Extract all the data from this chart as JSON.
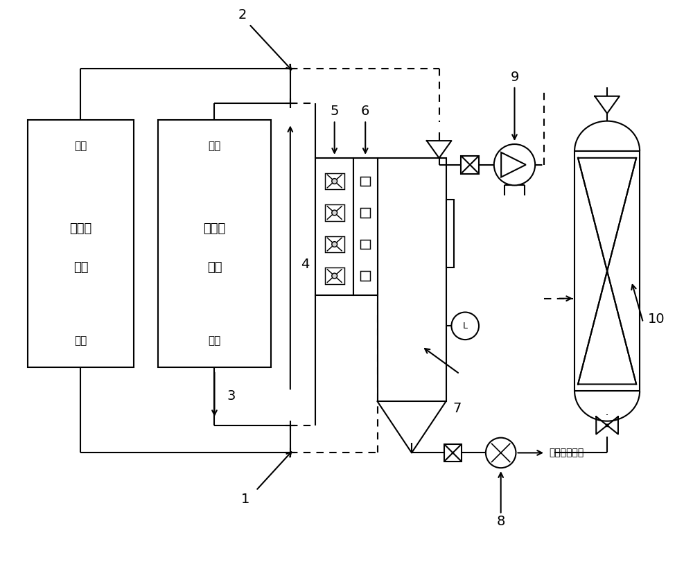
{
  "bg_color": "#ffffff",
  "line_color": "#000000",
  "labels": {
    "num_1": "1",
    "num_2": "2",
    "num_3": "3",
    "num_4": "4",
    "num_5": "5",
    "num_6": "6",
    "num_7": "7",
    "num_8": "8",
    "num_9": "9",
    "num_10": "10",
    "pump_label": "去清洗泵入口"
  },
  "figsize": [
    10.0,
    8.11
  ],
  "dpi": 100
}
